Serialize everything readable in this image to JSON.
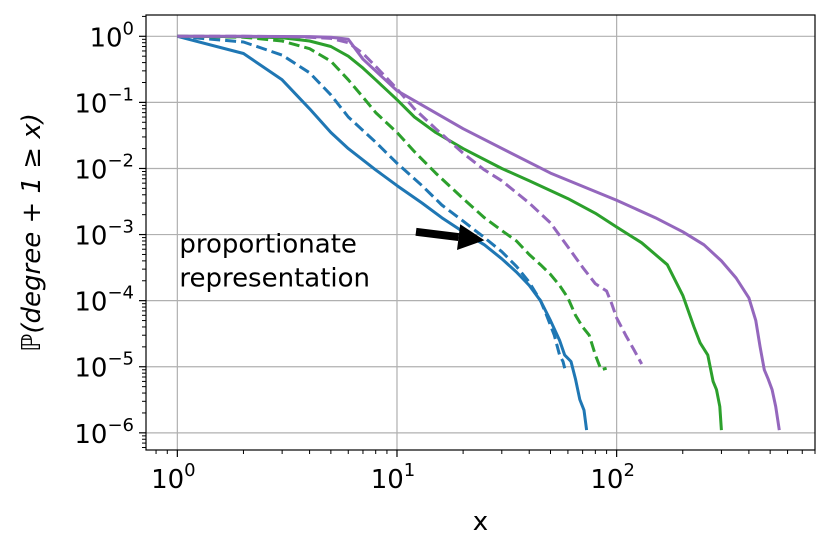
{
  "chart_data": {
    "type": "line",
    "x_scale": "log",
    "y_scale": "log",
    "xlabel": "x",
    "ylabel": "ℙ(degree + 1 ≥ x)",
    "xlim": [
      0.72,
      800
    ],
    "ylim": [
      5.5e-07,
      2.1
    ],
    "grid": true,
    "legend": "none",
    "x_ticks": [
      {
        "base": "10",
        "exp": "0",
        "value": 1
      },
      {
        "base": "10",
        "exp": "1",
        "value": 10
      },
      {
        "base": "10",
        "exp": "2",
        "value": 100
      }
    ],
    "y_ticks": [
      {
        "base": "10",
        "exp": "0",
        "value": 1
      },
      {
        "base": "10",
        "exp": "−1",
        "value": 0.1
      },
      {
        "base": "10",
        "exp": "−2",
        "value": 0.01
      },
      {
        "base": "10",
        "exp": "−3",
        "value": 0.001
      },
      {
        "base": "10",
        "exp": "−4",
        "value": 0.0001
      },
      {
        "base": "10",
        "exp": "−5",
        "value": 1e-05
      },
      {
        "base": "10",
        "exp": "−6",
        "value": 1e-06
      }
    ],
    "annotation": {
      "line1": "proportionate",
      "line2": "representation",
      "text_x": 1.0,
      "text_y": 0.001,
      "arrow_from": [
        12.2,
        0.0011
      ],
      "arrow_to": [
        25,
        0.00082
      ]
    },
    "series": [
      {
        "color": "#1f77b4",
        "style": "solid",
        "x": [
          1,
          2,
          3,
          4,
          5,
          6,
          8,
          10,
          13,
          16,
          20,
          25,
          30,
          35,
          40,
          45,
          50,
          55,
          58,
          62,
          65,
          68,
          71,
          73
        ],
        "y": [
          1,
          0.55,
          0.22,
          0.08,
          0.035,
          0.02,
          0.0095,
          0.0055,
          0.003,
          0.0018,
          0.0011,
          0.0007,
          0.00043,
          0.00027,
          0.00017,
          0.0001,
          5e-05,
          2.5e-05,
          1.5e-05,
          1.2e-05,
          6.5e-06,
          3.2e-06,
          2.2e-06,
          1.1e-06
        ]
      },
      {
        "color": "#1f77b4",
        "style": "dashed",
        "x": [
          1,
          2,
          3,
          4,
          5,
          6,
          8,
          10,
          13,
          16,
          20,
          25,
          30,
          35,
          40,
          45,
          48,
          52,
          55,
          57,
          58
        ],
        "y": [
          1,
          0.82,
          0.52,
          0.28,
          0.13,
          0.06,
          0.025,
          0.012,
          0.0055,
          0.0028,
          0.0016,
          0.0009,
          0.00055,
          0.00033,
          0.00019,
          0.0001,
          6e-05,
          3e-05,
          1.5e-05,
          1.2e-05,
          9.5e-06
        ]
      },
      {
        "color": "#2ca02c",
        "style": "solid",
        "x": [
          1,
          2,
          3,
          4,
          5,
          6,
          7,
          8,
          10,
          12,
          15,
          20,
          30,
          40,
          60,
          80,
          100,
          130,
          170,
          200,
          225,
          240,
          260,
          275,
          285,
          295,
          300
        ],
        "y": [
          1,
          0.99,
          0.95,
          0.85,
          0.7,
          0.5,
          0.33,
          0.22,
          0.11,
          0.06,
          0.035,
          0.02,
          0.01,
          0.0065,
          0.0035,
          0.0021,
          0.0013,
          0.00075,
          0.00035,
          0.00012,
          4e-05,
          2.3e-05,
          1.5e-05,
          6e-06,
          4.5e-06,
          2.5e-06,
          1.1e-06
        ]
      },
      {
        "color": "#2ca02c",
        "style": "dashed",
        "x": [
          1,
          2,
          3,
          4,
          5,
          6,
          7,
          8,
          10,
          12,
          15,
          20,
          25,
          30,
          35,
          40,
          45,
          50,
          55,
          60,
          65,
          70,
          75,
          80,
          85,
          90
        ],
        "y": [
          1,
          0.97,
          0.85,
          0.65,
          0.42,
          0.22,
          0.12,
          0.07,
          0.035,
          0.018,
          0.0085,
          0.0035,
          0.0018,
          0.00115,
          0.0008,
          0.0005,
          0.00035,
          0.00025,
          0.00017,
          0.00011,
          6e-05,
          4e-05,
          3e-05,
          1.5e-05,
          9e-06,
          9.5e-06
        ]
      },
      {
        "color": "#9467bd",
        "style": "solid",
        "x": [
          1,
          2,
          4,
          5,
          6,
          7,
          10,
          20,
          50,
          100,
          150,
          200,
          250,
          300,
          350,
          400,
          430,
          450,
          470,
          490,
          510,
          530,
          550
        ],
        "y": [
          1,
          1,
          0.99,
          0.97,
          0.9,
          0.45,
          0.15,
          0.04,
          0.0085,
          0.0033,
          0.0018,
          0.0011,
          0.0007,
          0.0004,
          0.00022,
          0.00011,
          5e-05,
          2e-05,
          9e-06,
          6.5e-06,
          4.5e-06,
          2.5e-06,
          1.1e-06
        ]
      },
      {
        "color": "#9467bd",
        "style": "dashed",
        "x": [
          1,
          2,
          3,
          4,
          5,
          6,
          7,
          8,
          10,
          12,
          15,
          20,
          25,
          30,
          40,
          50,
          60,
          70,
          80,
          90,
          95,
          100,
          110,
          120,
          130
        ],
        "y": [
          1,
          1,
          0.99,
          0.97,
          0.93,
          0.8,
          0.55,
          0.35,
          0.16,
          0.08,
          0.04,
          0.017,
          0.0095,
          0.0065,
          0.003,
          0.0015,
          0.00065,
          0.00032,
          0.00018,
          0.00014,
          9e-05,
          5.5e-05,
          3e-05,
          1.8e-05,
          1.1e-05
        ]
      }
    ]
  }
}
